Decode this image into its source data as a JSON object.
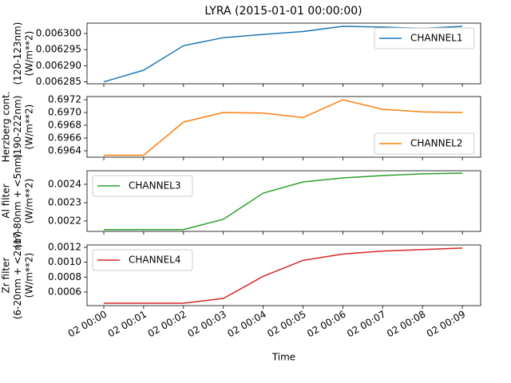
{
  "chart_data": [
    {
      "type": "line",
      "title": "LYRA (2015-01-01 00:00:00)",
      "ylabel": [
        "(120-123nm)",
        "(W/m**2)"
      ],
      "series": [
        {
          "name": "CHANNEL1",
          "color": "#1f77b4",
          "values": [
            0.006285,
            0.0062886,
            0.0062962,
            0.0062987,
            0.0062997,
            0.0063006,
            0.0063022,
            0.006302,
            0.0063016,
            0.0063022
          ]
        }
      ],
      "ylim": [
        0.0062844,
        0.0063032
      ],
      "yticks": [
        0.006285,
        {
          "value": 0.00629,
          "label": "0.006290"
        },
        0.006295,
        {
          "value": 0.0063,
          "label": "0.006300"
        }
      ],
      "legend": "upper right"
    },
    {
      "type": "line",
      "ylabel": [
        "Herzberg cont.",
        "(190-222nm)",
        "(W/m**2)"
      ],
      "series": [
        {
          "name": "CHANNEL2",
          "color": "#ff7f0e",
          "values": [
            0.69633,
            0.69633,
            0.69685,
            0.697,
            0.69699,
            0.69692,
            0.6972,
            0.69705,
            0.69701,
            0.697
          ]
        }
      ],
      "ylim": [
        0.6963,
        0.69725
      ],
      "yticks": [
        0.6964,
        0.6966,
        0.6968,
        {
          "value": 0.697,
          "label": "0.6970"
        },
        0.6972
      ],
      "legend": "lower right"
    },
    {
      "type": "line",
      "ylabel": [
        "Al filter",
        "(17-80nm + <5nm)",
        "(W/m**2)"
      ],
      "series": [
        {
          "name": "CHANNEL3",
          "color": "#2ca02c",
          "values": [
            0.002152,
            0.002153,
            0.002153,
            0.002209,
            0.002352,
            0.002413,
            0.002435,
            0.002448,
            0.002457,
            0.002461
          ]
        }
      ],
      "ylim": [
        0.002143,
        0.002474
      ],
      "yticks": [
        0.0022,
        0.0023,
        0.0024
      ],
      "legend": "upper left"
    },
    {
      "type": "line",
      "ylabel": [
        "Zr filter",
        "(6-20nm + <2nm)",
        "(W/m**2)"
      ],
      "xlabel": "Time",
      "x": [
        "02 00:00",
        "02 00:01",
        "02 00:02",
        "02 00:03",
        "02 00:04",
        "02 00:05",
        "02 00:06",
        "02 00:07",
        "02 00:08",
        "02 00:09"
      ],
      "series": [
        {
          "name": "CHANNEL4",
          "color": "#d62728",
          "values": [
            0.00045,
            0.00045,
            0.00045,
            0.000514,
            0.000811,
            0.001025,
            0.00111,
            0.00115,
            0.00117,
            0.00119
          ]
        }
      ],
      "ylim": [
        0.000418,
        0.001232
      ],
      "yticks": [
        0.0006,
        0.0008,
        {
          "value": 0.001,
          "label": "0.0010"
        },
        0.0012
      ],
      "legend": "upper left"
    }
  ]
}
